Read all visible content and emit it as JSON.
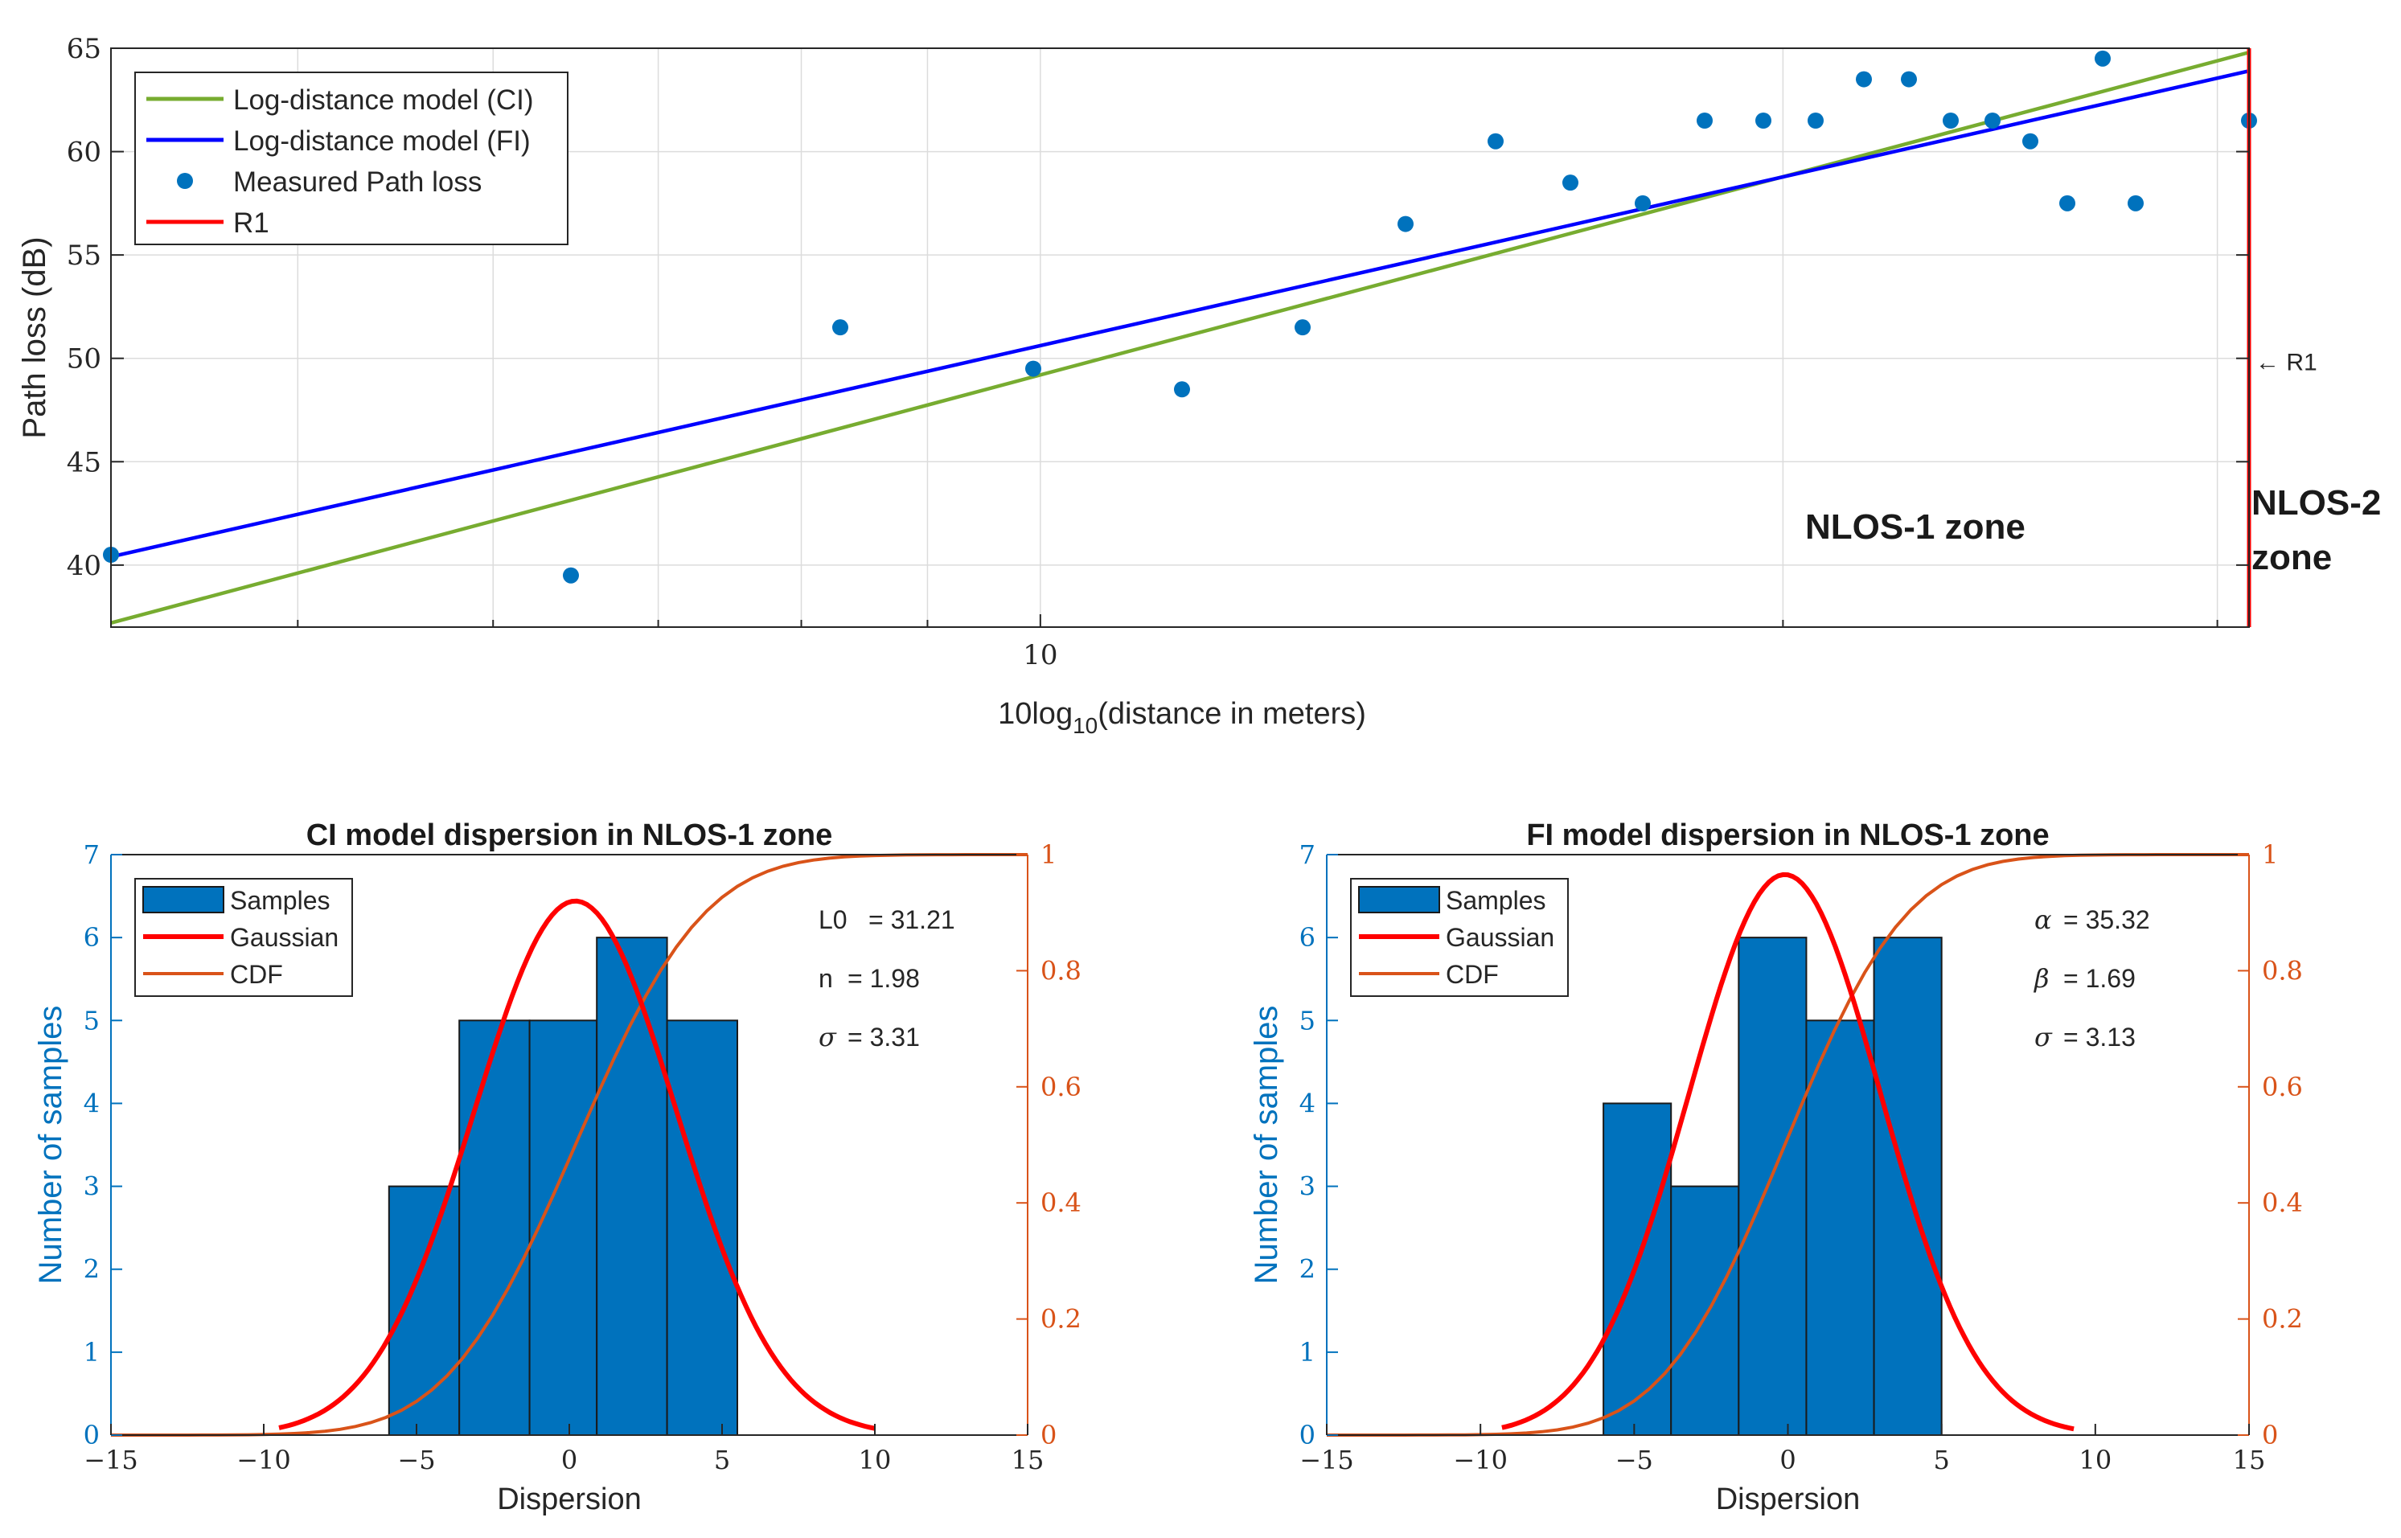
{
  "colors": {
    "ci_line": "#77AC30",
    "fi_line": "#0000FF",
    "points": "#0072BD",
    "r1": "#FF0000",
    "bars": "#0072BD",
    "gaussian": "#FF0000",
    "cdf": "#D95319",
    "left_axis": "#0072BD",
    "right_axis": "#D95319",
    "grid": "#dcdcdc"
  },
  "chart_data": [
    {
      "type": "scatter",
      "title": "",
      "xlabel_main": "10log",
      "xlabel_sub": "10",
      "xlabel_rest": "(distance in meters)",
      "ylabel": "Path loss (dB)",
      "x_scale": "log",
      "xlim": [
        4.2,
        30.9
      ],
      "ylim": [
        37,
        65
      ],
      "x_ticks": [
        10
      ],
      "x_tick_labels": [
        "10"
      ],
      "y_ticks": [
        40,
        45,
        50,
        55,
        60,
        65
      ],
      "y_tick_labels": [
        "40",
        "45",
        "50",
        "55",
        "60",
        "65"
      ],
      "x_minor_grid": [
        5,
        6,
        7,
        8,
        9,
        20,
        30
      ],
      "grid": true,
      "legend_position": "top-left",
      "legend": [
        {
          "label": "Log-distance model (CI)",
          "kind": "line",
          "color": "#77AC30"
        },
        {
          "label": "Log-distance model (FI)",
          "kind": "line",
          "color": "#0000FF"
        },
        {
          "label": "Measured Path loss",
          "kind": "marker",
          "color": "#0072BD"
        },
        {
          "label": "R1",
          "kind": "line",
          "color": "#FF0000"
        }
      ],
      "series": [
        {
          "name": "Log-distance model (CI)",
          "type": "line",
          "x": [
            4.2,
            30.9
          ],
          "y": [
            37.2,
            64.8
          ]
        },
        {
          "name": "Log-distance model (FI)",
          "type": "line",
          "x": [
            4.2,
            30.9
          ],
          "y": [
            40.4,
            63.9
          ]
        },
        {
          "name": "Measured Path loss",
          "type": "scatter",
          "x": [
            4.2,
            6.0,
            7.0,
            8.5,
            10.0,
            11.2,
            12.9,
            14.3,
            15.8,
            17.6,
            19.8,
            21.4,
            22.6,
            24.0,
            25.9,
            27.7,
            28.6,
            29.4,
            29.9,
            30.5,
            31.2,
            31.9
          ],
          "y": [
            40.5,
            39.5,
            51.5,
            49.5,
            48.5,
            51.5,
            56.5,
            60.5,
            58.5,
            57.5,
            61.5,
            61.5,
            61.5,
            63.5,
            63.5,
            61.5,
            61.5,
            60.5,
            57.5,
            64.5,
            57.5,
            61.5
          ]
        },
        {
          "name": "R1",
          "type": "vline",
          "x": 30.9
        }
      ],
      "annotations": {
        "r1_arrow": "← R1",
        "zone1": "NLOS-1 zone",
        "zone2_line1": "NLOS-2",
        "zone2_line2": "zone"
      }
    },
    {
      "type": "bar",
      "title": "CI model dispersion in NLOS-1 zone",
      "xlabel": "Dispersion",
      "ylabel_left": "Number of samples",
      "xlim": [
        -15,
        15
      ],
      "ylim_left": [
        0,
        7
      ],
      "ylim_right": [
        0,
        1
      ],
      "x_ticks": [
        -15,
        -10,
        -5,
        0,
        5,
        10,
        15
      ],
      "x_tick_labels": [
        "−15",
        "−10",
        "−5",
        "0",
        "5",
        "10",
        "15"
      ],
      "y_ticks_left": [
        0,
        1,
        2,
        3,
        4,
        5,
        6,
        7
      ],
      "y_tick_labels_left": [
        "0",
        "1",
        "2",
        "3",
        "4",
        "5",
        "6",
        "7"
      ],
      "y_ticks_right": [
        0,
        0.2,
        0.4,
        0.6,
        0.8,
        1
      ],
      "y_tick_labels_right": [
        "0",
        "0.2",
        "0.4",
        "0.6",
        "0.8",
        "1"
      ],
      "legend_position": "top-left",
      "legend": [
        {
          "label": "Samples",
          "kind": "patch",
          "color": "#0072BD"
        },
        {
          "label": "Gaussian",
          "kind": "line",
          "color": "#FF0000"
        },
        {
          "label": "CDF",
          "kind": "line",
          "color": "#D95319"
        }
      ],
      "bins": [
        {
          "x0": -5.9,
          "x1": -3.6,
          "count": 3
        },
        {
          "x0": -3.6,
          "x1": -1.3,
          "count": 5
        },
        {
          "x0": -1.3,
          "x1": 0.9,
          "count": 5
        },
        {
          "x0": 0.9,
          "x1": 3.2,
          "count": 6
        },
        {
          "x0": 3.2,
          "x1": 5.5,
          "count": 5
        }
      ],
      "gaussian": {
        "mean": 0.2,
        "sigma": 3.31,
        "peak": 6.44,
        "x_range": [
          -9.5,
          10.0
        ]
      },
      "cdf": {
        "mean": 0.2,
        "sigma": 3.31,
        "x_range": [
          -15,
          15
        ]
      },
      "params": [
        {
          "symbol": "L0",
          "value": "= 31.21",
          "greek": false
        },
        {
          "symbol": "n",
          "value": "= 1.98",
          "greek": false
        },
        {
          "symbol": "σ",
          "value": "= 3.31",
          "greek": true
        }
      ]
    },
    {
      "type": "bar",
      "title": "FI model dispersion in NLOS-1 zone",
      "xlabel": "Dispersion",
      "ylabel_left": "Number of samples",
      "xlim": [
        -15,
        15
      ],
      "ylim_left": [
        0,
        7
      ],
      "ylim_right": [
        0,
        1
      ],
      "x_ticks": [
        -15,
        -10,
        -5,
        0,
        5,
        10,
        15
      ],
      "x_tick_labels": [
        "−15",
        "−10",
        "−5",
        "0",
        "5",
        "10",
        "15"
      ],
      "y_ticks_left": [
        0,
        1,
        2,
        3,
        4,
        5,
        6,
        7
      ],
      "y_tick_labels_left": [
        "0",
        "1",
        "2",
        "3",
        "4",
        "5",
        "6",
        "7"
      ],
      "y_ticks_right": [
        0,
        0.2,
        0.4,
        0.6,
        0.8,
        1
      ],
      "y_tick_labels_right": [
        "0",
        "0.2",
        "0.4",
        "0.6",
        "0.8",
        "1"
      ],
      "legend_position": "top-left",
      "legend": [
        {
          "label": "Samples",
          "kind": "patch",
          "color": "#0072BD"
        },
        {
          "label": "Gaussian",
          "kind": "line",
          "color": "#FF0000"
        },
        {
          "label": "CDF",
          "kind": "line",
          "color": "#D95319"
        }
      ],
      "bins": [
        {
          "x0": -6.0,
          "x1": -3.8,
          "count": 4
        },
        {
          "x0": -3.8,
          "x1": -1.6,
          "count": 3
        },
        {
          "x0": -1.6,
          "x1": 0.6,
          "count": 6
        },
        {
          "x0": 0.6,
          "x1": 2.8,
          "count": 5
        },
        {
          "x0": 2.8,
          "x1": 5.0,
          "count": 6
        }
      ],
      "gaussian": {
        "mean": -0.1,
        "sigma": 3.13,
        "peak": 6.76,
        "x_range": [
          -9.3,
          9.3
        ]
      },
      "cdf": {
        "mean": -0.1,
        "sigma": 3.13,
        "x_range": [
          -15,
          15
        ]
      },
      "params": [
        {
          "symbol": "α",
          "value": "= 35.32",
          "greek": true
        },
        {
          "symbol": "β",
          "value": "= 1.69",
          "greek": true
        },
        {
          "symbol": "σ",
          "value": "= 3.13",
          "greek": true
        }
      ]
    }
  ]
}
